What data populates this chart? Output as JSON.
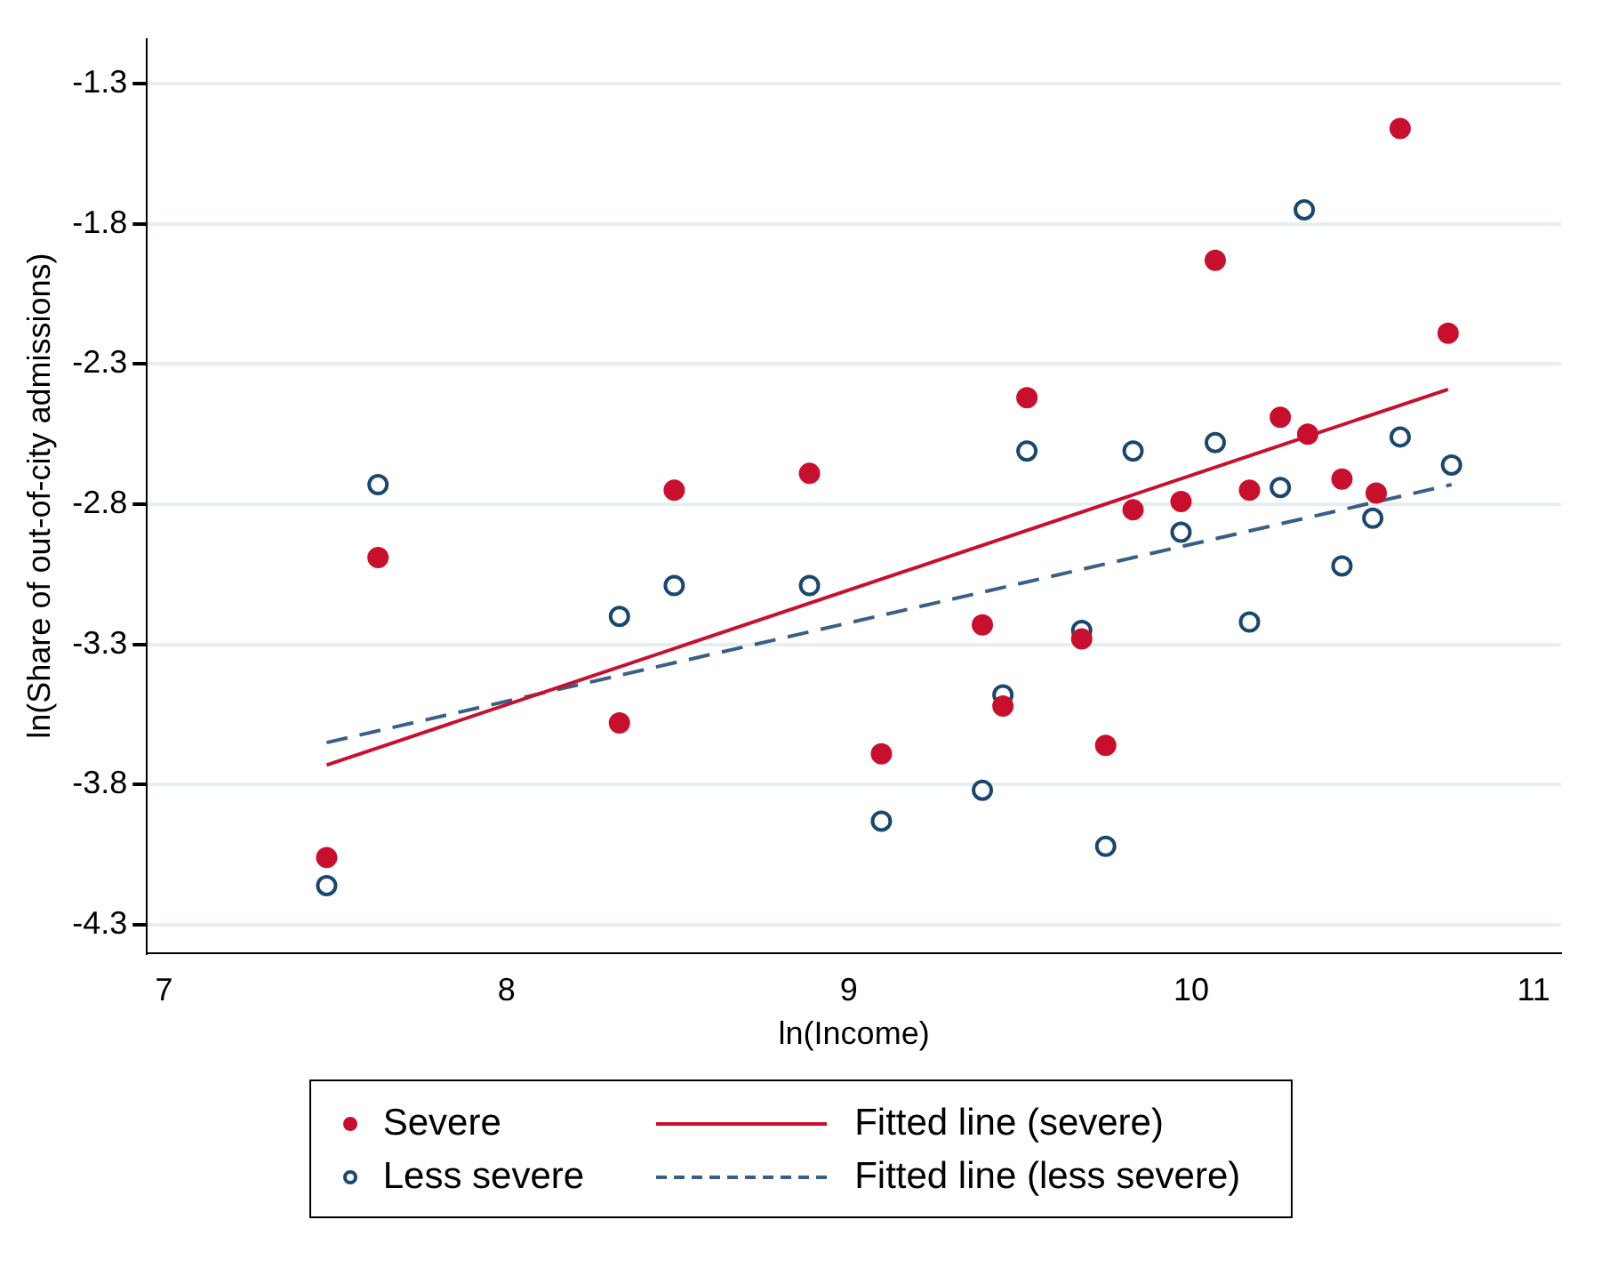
{
  "chart_data": {
    "type": "scatter",
    "xlabel": "ln(Income)",
    "ylabel": "ln(Share of out-of-city admissions)",
    "xlim": [
      6.95,
      11.08
    ],
    "xticks": [
      7,
      8,
      9,
      10,
      11
    ],
    "ylim": [
      -4.4,
      -1.14
    ],
    "yticks": [
      -4.3,
      -3.8,
      -3.3,
      -2.8,
      -2.3,
      -1.8,
      -1.3
    ],
    "grid": "y",
    "legend": "bottom",
    "marker": "circle",
    "series": [
      {
        "name": "Severe",
        "type": "scatter",
        "color": "#c8102e",
        "x": [
          7.475,
          7.625,
          8.33,
          8.49,
          8.885,
          9.095,
          9.39,
          9.45,
          9.52,
          9.68,
          9.75,
          9.83,
          9.97,
          10.07,
          10.17,
          10.26,
          10.34,
          10.44,
          10.54,
          10.61,
          10.75
        ],
        "values": [
          -4.06,
          -2.99,
          -3.58,
          -2.75,
          -2.69,
          -3.69,
          -3.23,
          -3.52,
          -2.42,
          -3.28,
          -3.66,
          -2.82,
          -2.79,
          -1.93,
          -2.75,
          -2.49,
          -2.55,
          -2.71,
          -2.76,
          -1.46,
          -2.19
        ]
      },
      {
        "name": "Less severe",
        "type": "scatter",
        "color": "#1a476f",
        "x": [
          7.475,
          7.625,
          8.33,
          8.49,
          8.885,
          9.095,
          9.39,
          9.45,
          9.52,
          9.68,
          9.75,
          9.83,
          9.97,
          10.07,
          10.17,
          10.26,
          10.33,
          10.44,
          10.53,
          10.61,
          10.76
        ],
        "values": [
          -4.16,
          -2.73,
          -3.2,
          -3.09,
          -3.09,
          -3.93,
          -3.82,
          -3.48,
          -2.61,
          -3.25,
          -4.02,
          -2.61,
          -2.9,
          -2.58,
          -3.22,
          -2.74,
          -1.75,
          -3.02,
          -2.85,
          -2.56,
          -2.66
        ]
      },
      {
        "name": "Fitted line (severe)",
        "type": "line",
        "color": "#c8102e",
        "line_style": "solid",
        "marker": "none",
        "x": [
          7.475,
          10.75
        ],
        "values": [
          -3.73,
          -2.39
        ]
      },
      {
        "name": "Fitted line (less severe)",
        "type": "line",
        "color": "#3a5f87",
        "line_style": "dashed",
        "marker": "none",
        "x": [
          7.475,
          10.76
        ],
        "values": [
          -3.65,
          -2.73
        ]
      }
    ]
  }
}
